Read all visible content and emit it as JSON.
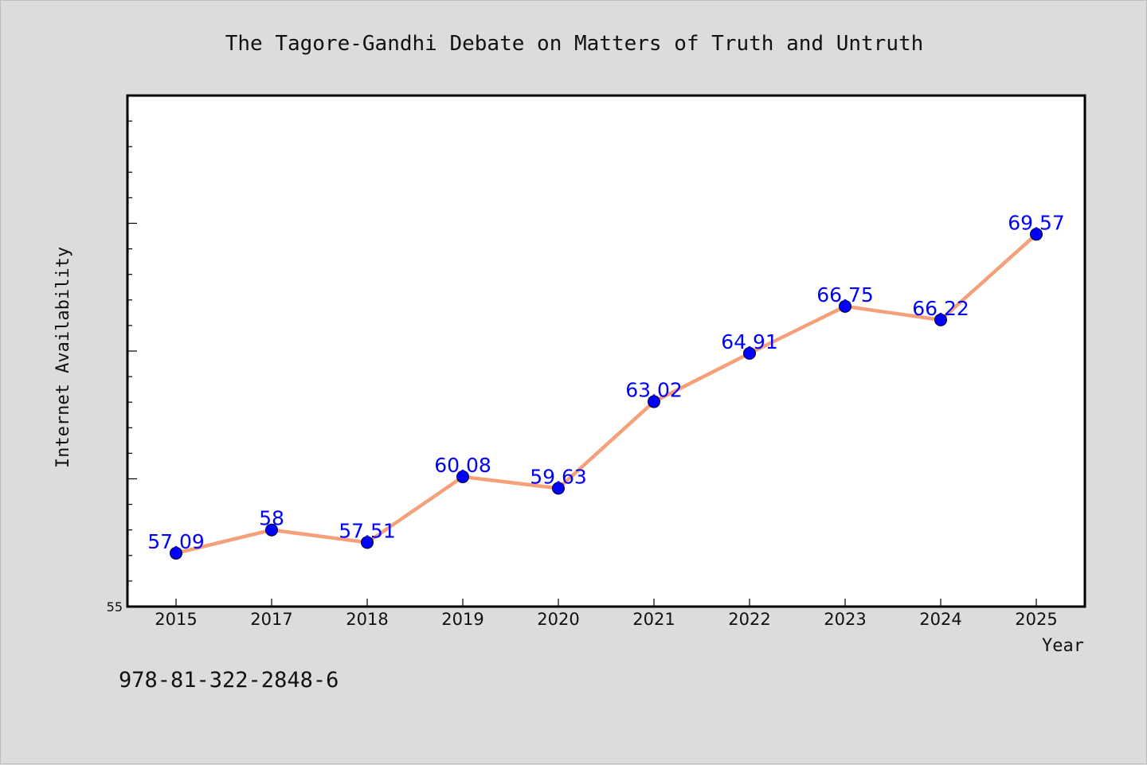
{
  "footer": {
    "isbn": "978-81-322-2848-6"
  },
  "colors": {
    "background": "#dcdcdc",
    "plot_bg": "#ffffff",
    "line": "#f4a07a",
    "marker": "#0000ff",
    "label": "#0000ff"
  },
  "chart_data": {
    "type": "line",
    "title": "The Tagore-Gandhi Debate on Matters of Truth and Untruth",
    "xlabel": "Year",
    "ylabel": "Internet Availability",
    "categories": [
      "2015",
      "2017",
      "2018",
      "2019",
      "2020",
      "2021",
      "2022",
      "2023",
      "2024",
      "2025"
    ],
    "series": [
      {
        "values": [
          57.09,
          58,
          57.51,
          60.08,
          59.63,
          63.02,
          64.91,
          66.75,
          66.22,
          69.57
        ],
        "labels": [
          "57.09",
          "58",
          "57.51",
          "60.08",
          "59.63",
          "63.02",
          "64.91",
          "66.75",
          "66.22",
          "69.57"
        ]
      }
    ],
    "ylim": [
      55,
      75
    ],
    "y_tick_labels": [
      "55"
    ],
    "grid": false,
    "legend": "none"
  }
}
